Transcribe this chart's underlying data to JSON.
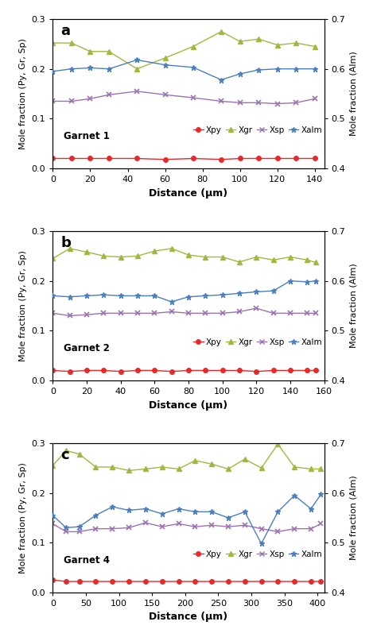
{
  "panel_a": {
    "label": "Garnet 1",
    "panel_letter": "a",
    "xlim": [
      0,
      145
    ],
    "xticks": [
      0,
      20,
      40,
      60,
      80,
      100,
      120,
      140
    ],
    "xpy": {
      "x": [
        0,
        10,
        20,
        30,
        45,
        60,
        75,
        90,
        100,
        110,
        120,
        130,
        140
      ],
      "y": [
        0.02,
        0.02,
        0.02,
        0.02,
        0.02,
        0.018,
        0.02,
        0.018,
        0.02,
        0.02,
        0.02,
        0.02,
        0.02
      ]
    },
    "xgr": {
      "x": [
        0,
        10,
        20,
        30,
        45,
        60,
        75,
        90,
        100,
        110,
        120,
        130,
        140
      ],
      "y": [
        0.252,
        0.252,
        0.235,
        0.235,
        0.2,
        0.222,
        0.245,
        0.275,
        0.255,
        0.26,
        0.248,
        0.252,
        0.245
      ]
    },
    "xsp": {
      "x": [
        0,
        10,
        20,
        30,
        45,
        60,
        75,
        90,
        100,
        110,
        120,
        130,
        140
      ],
      "y": [
        0.135,
        0.135,
        0.14,
        0.148,
        0.155,
        0.148,
        0.142,
        0.135,
        0.132,
        0.132,
        0.13,
        0.132,
        0.14
      ]
    },
    "xalm": {
      "x": [
        0,
        10,
        20,
        30,
        45,
        60,
        75,
        90,
        100,
        110,
        120,
        130,
        140
      ],
      "y": [
        0.595,
        0.6,
        0.602,
        0.6,
        0.618,
        0.608,
        0.603,
        0.578,
        0.59,
        0.598,
        0.6,
        0.6,
        0.6
      ]
    }
  },
  "panel_b": {
    "label": "Garnet 2",
    "panel_letter": "b",
    "xlim": [
      0,
      160
    ],
    "xticks": [
      0,
      20,
      40,
      60,
      80,
      100,
      120,
      140,
      160
    ],
    "xpy": {
      "x": [
        0,
        10,
        20,
        30,
        40,
        50,
        60,
        70,
        80,
        90,
        100,
        110,
        120,
        130,
        140,
        150,
        155
      ],
      "y": [
        0.02,
        0.018,
        0.02,
        0.02,
        0.018,
        0.02,
        0.02,
        0.018,
        0.02,
        0.02,
        0.02,
        0.02,
        0.018,
        0.02,
        0.02,
        0.02,
        0.02
      ]
    },
    "xgr": {
      "x": [
        0,
        10,
        20,
        30,
        40,
        50,
        60,
        70,
        80,
        90,
        100,
        110,
        120,
        130,
        140,
        150,
        155
      ],
      "y": [
        0.245,
        0.265,
        0.258,
        0.25,
        0.248,
        0.25,
        0.26,
        0.265,
        0.252,
        0.248,
        0.248,
        0.238,
        0.248,
        0.242,
        0.248,
        0.242,
        0.237
      ]
    },
    "xsp": {
      "x": [
        0,
        10,
        20,
        30,
        40,
        50,
        60,
        70,
        80,
        90,
        100,
        110,
        120,
        130,
        140,
        150,
        155
      ],
      "y": [
        0.135,
        0.13,
        0.132,
        0.135,
        0.135,
        0.135,
        0.135,
        0.138,
        0.135,
        0.135,
        0.135,
        0.138,
        0.145,
        0.135,
        0.135,
        0.135,
        0.135
      ]
    },
    "xalm": {
      "x": [
        0,
        10,
        20,
        30,
        40,
        50,
        60,
        70,
        80,
        90,
        100,
        110,
        120,
        130,
        140,
        150,
        155
      ],
      "y": [
        0.57,
        0.568,
        0.57,
        0.572,
        0.57,
        0.57,
        0.57,
        0.558,
        0.568,
        0.57,
        0.572,
        0.575,
        0.578,
        0.58,
        0.6,
        0.598,
        0.6
      ]
    }
  },
  "panel_c": {
    "label": "Garnet 4",
    "panel_letter": "c",
    "xlim": [
      0,
      410
    ],
    "xticks": [
      0,
      50,
      100,
      150,
      200,
      250,
      300,
      350,
      400
    ],
    "xpy": {
      "x": [
        0,
        20,
        40,
        65,
        90,
        115,
        140,
        165,
        190,
        215,
        240,
        265,
        290,
        315,
        340,
        365,
        390,
        405
      ],
      "y": [
        0.025,
        0.022,
        0.022,
        0.022,
        0.022,
        0.022,
        0.022,
        0.022,
        0.022,
        0.022,
        0.022,
        0.022,
        0.022,
        0.022,
        0.022,
        0.022,
        0.022,
        0.022
      ]
    },
    "xgr": {
      "x": [
        0,
        20,
        40,
        65,
        90,
        115,
        140,
        165,
        190,
        215,
        240,
        265,
        290,
        315,
        340,
        365,
        390,
        405
      ],
      "y": [
        0.255,
        0.285,
        0.278,
        0.252,
        0.252,
        0.245,
        0.248,
        0.252,
        0.248,
        0.265,
        0.258,
        0.248,
        0.268,
        0.25,
        0.298,
        0.252,
        0.248,
        0.248
      ]
    },
    "xsp": {
      "x": [
        0,
        20,
        40,
        65,
        90,
        115,
        140,
        165,
        190,
        215,
        240,
        265,
        290,
        315,
        340,
        365,
        390,
        405
      ],
      "y": [
        0.138,
        0.122,
        0.122,
        0.128,
        0.128,
        0.13,
        0.14,
        0.132,
        0.138,
        0.132,
        0.135,
        0.132,
        0.135,
        0.128,
        0.122,
        0.128,
        0.128,
        0.138
      ]
    },
    "xalm": {
      "x": [
        0,
        20,
        40,
        65,
        90,
        115,
        140,
        165,
        190,
        215,
        240,
        265,
        290,
        315,
        340,
        365,
        390,
        405
      ],
      "y": [
        0.555,
        0.53,
        0.532,
        0.555,
        0.572,
        0.565,
        0.568,
        0.558,
        0.568,
        0.562,
        0.562,
        0.55,
        0.562,
        0.498,
        0.562,
        0.595,
        0.568,
        0.597
      ]
    }
  },
  "colors": {
    "xpy": "#e8292a",
    "xgr": "#a0b840",
    "xsp": "#9b72b0",
    "xalm": "#4a7fbf"
  },
  "ylim_left": [
    0,
    0.3
  ],
  "ylim_right": [
    0.4,
    0.7
  ],
  "yticks_left": [
    0,
    0.1,
    0.2,
    0.3
  ],
  "yticks_right": [
    0.4,
    0.5,
    0.6,
    0.7
  ],
  "ylabel_left": "Mole fraction (Py, Gr, Sp)",
  "ylabel_right": "Mole fraction (Alm)",
  "xlabel": "Distance (μm)",
  "marker_size": 4,
  "linewidth": 1.0
}
